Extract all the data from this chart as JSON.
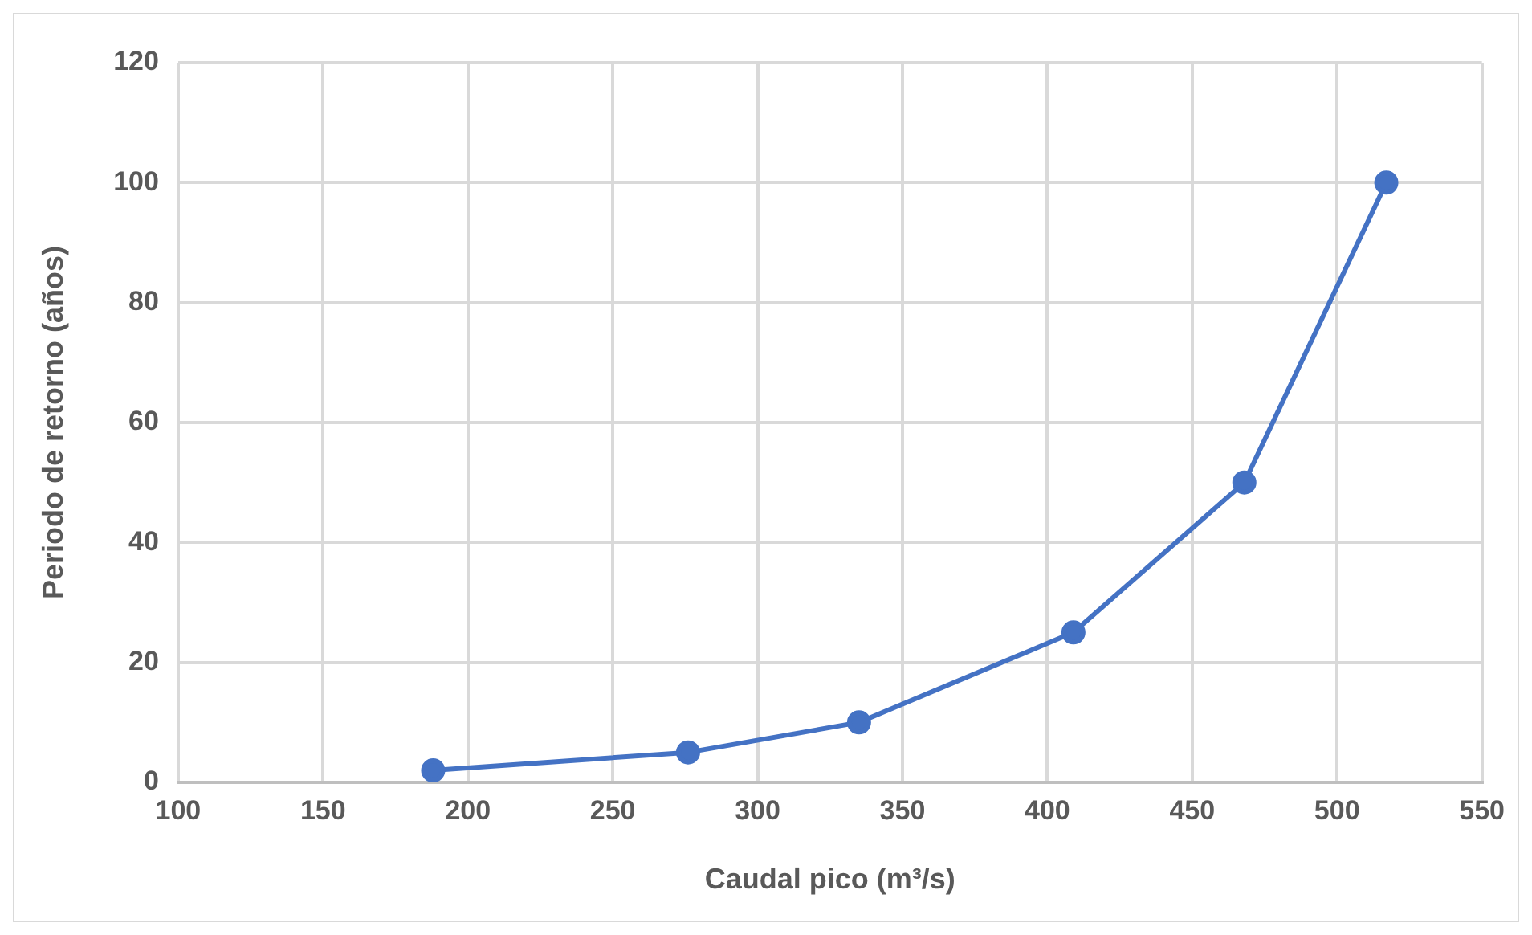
{
  "chart_data": {
    "type": "line",
    "xlabel": "Caudal pico (m³/s)",
    "ylabel": "Periodo de retorno (años)",
    "x": [
      188,
      276,
      335,
      409,
      468,
      517
    ],
    "series": [
      {
        "color": "#4472c4",
        "values": [
          2,
          5,
          10,
          25,
          50,
          100
        ]
      }
    ],
    "xlim": [
      100,
      550
    ],
    "xticks": [
      100,
      150,
      200,
      250,
      300,
      350,
      400,
      450,
      500,
      550
    ],
    "ylim": [
      0,
      120
    ],
    "yticks": [
      0,
      20,
      40,
      60,
      80,
      100,
      120
    ],
    "grid": true,
    "legend": false,
    "marker": "circle",
    "line_style": "solid"
  }
}
